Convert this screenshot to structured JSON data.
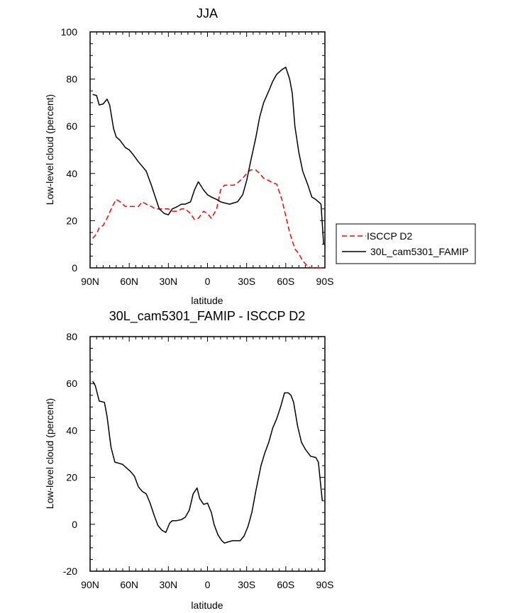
{
  "chart_data": [
    {
      "type": "line",
      "title": "JJA",
      "xlabel": "latitude",
      "ylabel": "Low-level cloud (percent)",
      "xlim": [
        90,
        -90
      ],
      "ylim": [
        0,
        100
      ],
      "x_ticks": [
        90,
        60,
        30,
        0,
        -30,
        -60,
        -90
      ],
      "x_tick_labels": [
        "90N",
        "60N",
        "30N",
        "0",
        "30S",
        "60S",
        "90S"
      ],
      "y_ticks": [
        0,
        20,
        40,
        60,
        80,
        100
      ],
      "y_tick_labels": [
        "0",
        "20",
        "40",
        "60",
        "80",
        "100"
      ],
      "legend": {
        "position": "right",
        "entries": [
          "ISCCP D2",
          "30L_cam5301_FAMIP"
        ]
      },
      "series": [
        {
          "name": "ISCCP D2",
          "color": "#ff0000",
          "dash": "dashed",
          "x": [
            88,
            85,
            83,
            80,
            77,
            73,
            70,
            67,
            63,
            60,
            57,
            53,
            50,
            47,
            43,
            40,
            37,
            33,
            30,
            27,
            23,
            20,
            17,
            13,
            10,
            7,
            3,
            0,
            -3,
            -7,
            -10,
            -13,
            -17,
            -20,
            -23,
            -27,
            -30,
            -33,
            -37,
            -40,
            -43,
            -47,
            -50,
            -53,
            -57,
            -60,
            -63,
            -67,
            -70,
            -73,
            -77,
            -80,
            -83,
            -87,
            -89
          ],
          "y": [
            12.5,
            14.5,
            17,
            18,
            21,
            26,
            29,
            28,
            26,
            26,
            26,
            26,
            28,
            27,
            26,
            25,
            25,
            25,
            25,
            24,
            24,
            25,
            25,
            23,
            20.5,
            21,
            24,
            23,
            21,
            25,
            33,
            35,
            35,
            35,
            36,
            38,
            40,
            41.5,
            41.5,
            40,
            38,
            37,
            36,
            35.5,
            29,
            22,
            15,
            8,
            6,
            3,
            0.5,
            0,
            0,
            0,
            0
          ]
        },
        {
          "name": "30L_cam5301_FAMIP",
          "color": "#000000",
          "dash": "solid",
          "x": [
            88,
            85,
            83,
            80,
            77,
            75,
            72,
            70,
            67,
            63,
            60,
            57,
            53,
            50,
            47,
            43,
            40,
            37,
            33,
            30,
            27,
            23,
            20,
            17,
            13,
            10,
            7,
            3,
            0,
            -3,
            -7,
            -10,
            -13,
            -17,
            -20,
            -23,
            -27,
            -30,
            -33,
            -37,
            -40,
            -43,
            -47,
            -50,
            -53,
            -57,
            -60,
            -63,
            -65,
            -67,
            -70,
            -73,
            -77,
            -80,
            -83,
            -87,
            -89
          ],
          "y": [
            73.5,
            73,
            69,
            69.5,
            71.5,
            69,
            59,
            55.5,
            54,
            51,
            50,
            48,
            45,
            43,
            41,
            35,
            30,
            25,
            23,
            22.5,
            25,
            26,
            27,
            27,
            28,
            33,
            36.5,
            33,
            31,
            30,
            29,
            28,
            27.5,
            27,
            27.5,
            28,
            31,
            37,
            45,
            55,
            64,
            70,
            75,
            79,
            82,
            84,
            85,
            80,
            74,
            60,
            49,
            41,
            35,
            30,
            29,
            27,
            10
          ]
        }
      ]
    },
    {
      "type": "line",
      "title": "30L_cam5301_FAMIP - ISCCP D2",
      "xlabel": "latitude",
      "ylabel": "Low-level cloud (percent)",
      "xlim": [
        90,
        -90
      ],
      "ylim": [
        -20,
        80
      ],
      "x_ticks": [
        90,
        60,
        30,
        0,
        -30,
        -60,
        -90
      ],
      "x_tick_labels": [
        "90N",
        "60N",
        "30N",
        "0",
        "30S",
        "60S",
        "90S"
      ],
      "y_ticks": [
        -20,
        0,
        20,
        40,
        60,
        80
      ],
      "y_tick_labels": [
        "-20",
        "0",
        "20",
        "40",
        "60",
        "80"
      ],
      "series": [
        {
          "color": "#000000",
          "dash": "solid",
          "x": [
            88,
            86,
            83,
            79,
            77,
            74,
            71,
            68,
            65,
            62,
            59,
            56,
            53,
            50,
            47,
            44,
            41,
            38,
            35,
            32,
            29,
            27,
            24,
            20,
            17,
            14,
            11,
            8,
            6,
            3,
            0,
            -3,
            -5,
            -8,
            -11,
            -13,
            -16,
            -19,
            -22,
            -25,
            -28,
            -31,
            -34,
            -37,
            -41,
            -44,
            -47,
            -50,
            -53,
            -56,
            -59,
            -62,
            -64,
            -66,
            -69,
            -72,
            -75,
            -79,
            -83,
            -85,
            -88
          ],
          "y": [
            61,
            59,
            52.5,
            52,
            46,
            33,
            26.5,
            26,
            25.5,
            24,
            22.5,
            20.5,
            16,
            14,
            13,
            9,
            4,
            -0.5,
            -2.5,
            -3.5,
            0.5,
            1.5,
            1.5,
            2,
            3,
            6,
            13,
            15.5,
            11,
            8.5,
            9,
            5,
            0,
            -4.5,
            -7,
            -8,
            -7.5,
            -7,
            -7,
            -7,
            -5,
            -1,
            5,
            14,
            25,
            30.5,
            35,
            41,
            45,
            50,
            56,
            56,
            55,
            52,
            42,
            35,
            32,
            29,
            28.5,
            26.5,
            10
          ]
        }
      ]
    }
  ]
}
